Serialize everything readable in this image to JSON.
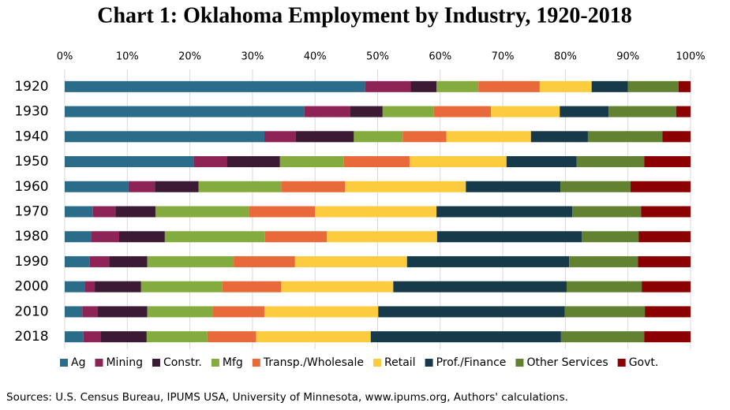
{
  "chart_data": {
    "type": "stacked_bar_horizontal",
    "title": "Chart 1: Oklahoma Employment by Industry, 1920-2018",
    "note": "Sources: U.S. Census Bureau, IPUMS USA, University of Minnesota, www.ipums.org, Authors' calculations.",
    "categories": [
      "1920",
      "1930",
      "1940",
      "1950",
      "1960",
      "1970",
      "1980",
      "1990",
      "2000",
      "2010",
      "2018"
    ],
    "series": [
      {
        "name": "Ag",
        "color": "#2b6c8a",
        "values": [
          48.0,
          38.3,
          31.9,
          20.6,
          10.2,
          4.5,
          4.2,
          4.0,
          3.2,
          2.8,
          3.0
        ]
      },
      {
        "name": "Mining",
        "color": "#8e2356",
        "values": [
          7.3,
          7.3,
          5.0,
          5.3,
          4.2,
          3.6,
          4.5,
          3.1,
          1.6,
          2.5,
          2.8
        ]
      },
      {
        "name": "Constr.",
        "color": "#3d1a33",
        "values": [
          4.1,
          5.2,
          9.3,
          8.5,
          7.0,
          6.4,
          7.3,
          6.1,
          7.4,
          7.9,
          7.3
        ]
      },
      {
        "name": "Mfg",
        "color": "#84ab3e",
        "values": [
          6.7,
          8.2,
          7.8,
          10.2,
          13.2,
          15.0,
          16.0,
          13.8,
          13.0,
          10.5,
          9.7
        ]
      },
      {
        "name": "Transp./Wholesale",
        "color": "#e8693a",
        "values": [
          9.8,
          9.1,
          7.0,
          10.5,
          10.2,
          10.5,
          9.9,
          9.8,
          9.4,
          8.2,
          7.8
        ]
      },
      {
        "name": "Retail",
        "color": "#fccb3e",
        "values": [
          8.3,
          11.0,
          13.5,
          15.5,
          19.3,
          19.4,
          17.6,
          17.9,
          17.9,
          18.2,
          18.3
        ]
      },
      {
        "name": "Prof./Finance",
        "color": "#163a4a",
        "values": [
          5.8,
          7.8,
          9.1,
          11.2,
          15.1,
          21.7,
          23.1,
          25.9,
          27.7,
          29.8,
          30.4
        ]
      },
      {
        "name": "Other Services",
        "color": "#628232",
        "values": [
          8.1,
          10.8,
          11.9,
          10.8,
          11.2,
          11.0,
          9.1,
          11.0,
          12.0,
          12.8,
          13.3
        ]
      },
      {
        "name": "Govt.",
        "color": "#8b0000",
        "values": [
          1.9,
          2.3,
          4.5,
          7.4,
          9.6,
          7.9,
          8.3,
          8.4,
          7.8,
          7.3,
          7.4
        ]
      }
    ],
    "xlim": [
      0,
      100
    ],
    "xticks": [
      {
        "value": 0,
        "label": "0%"
      },
      {
        "value": 10,
        "label": "10%"
      },
      {
        "value": 20,
        "label": "20%"
      },
      {
        "value": 30,
        "label": "30%"
      },
      {
        "value": 40,
        "label": "40%"
      },
      {
        "value": 50,
        "label": "50%"
      },
      {
        "value": 60,
        "label": "60%"
      },
      {
        "value": 70,
        "label": "70%"
      },
      {
        "value": 80,
        "label": "80%"
      },
      {
        "value": 90,
        "label": "90%"
      },
      {
        "value": 100,
        "label": "100%"
      }
    ],
    "grid": true,
    "legend": "bottom"
  }
}
